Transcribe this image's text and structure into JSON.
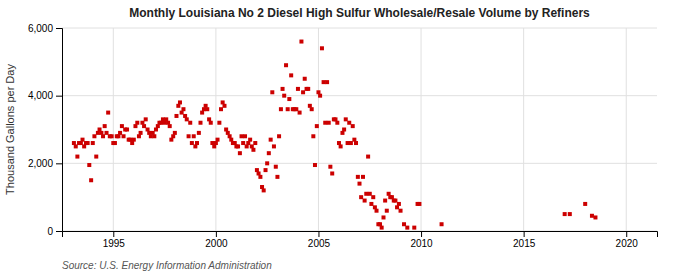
{
  "chart_data": {
    "type": "scatter",
    "title": "Monthly Louisiana No 2 Diesel High Sulfur Wholesale/Resale Volume by Refiners",
    "ylabel": "Thousand Gallons per Day",
    "source": "Source: U.S. Energy Information Administration",
    "color": "#cc0000",
    "marker": "square",
    "grid": true,
    "xlim": [
      1992.5,
      2021.5
    ],
    "xticks": [
      1995,
      2000,
      2005,
      2010,
      2015,
      2020
    ],
    "ylim": [
      0,
      6000
    ],
    "yticks": [
      0,
      {
        "value": 2000,
        "label": "2,000"
      },
      {
        "value": 4000,
        "label": "4,000"
      },
      {
        "value": 6000,
        "label": "6,000"
      }
    ],
    "x": [
      1993.08,
      1993.17,
      1993.25,
      1993.33,
      1993.42,
      1993.5,
      1993.58,
      1993.67,
      1993.75,
      1993.83,
      1993.92,
      1994.0,
      1994.08,
      1994.17,
      1994.25,
      1994.33,
      1994.42,
      1994.5,
      1994.58,
      1994.67,
      1994.75,
      1994.83,
      1994.92,
      1995.0,
      1995.08,
      1995.17,
      1995.25,
      1995.33,
      1995.42,
      1995.5,
      1995.58,
      1995.67,
      1995.75,
      1995.83,
      1995.92,
      1996.0,
      1996.08,
      1996.17,
      1996.25,
      1996.33,
      1996.42,
      1996.5,
      1996.58,
      1996.67,
      1996.75,
      1996.83,
      1996.92,
      1997.0,
      1997.08,
      1997.17,
      1997.25,
      1997.33,
      1997.42,
      1997.5,
      1997.58,
      1997.67,
      1997.75,
      1997.83,
      1997.92,
      1998.0,
      1998.08,
      1998.17,
      1998.25,
      1998.33,
      1998.42,
      1998.5,
      1998.58,
      1998.67,
      1998.75,
      1998.83,
      1998.92,
      1999.0,
      1999.08,
      1999.17,
      1999.25,
      1999.33,
      1999.42,
      1999.5,
      1999.58,
      1999.67,
      1999.75,
      1999.83,
      1999.92,
      2000.0,
      2000.08,
      2000.17,
      2000.25,
      2000.33,
      2000.42,
      2000.5,
      2000.58,
      2000.67,
      2000.75,
      2000.83,
      2000.92,
      2001.0,
      2001.08,
      2001.17,
      2001.25,
      2001.33,
      2001.42,
      2001.5,
      2001.58,
      2001.67,
      2001.75,
      2001.83,
      2001.92,
      2002.0,
      2002.08,
      2002.17,
      2002.25,
      2002.33,
      2002.42,
      2002.5,
      2002.58,
      2002.67,
      2002.75,
      2002.83,
      2002.92,
      2003.0,
      2003.08,
      2003.17,
      2003.25,
      2003.33,
      2003.42,
      2003.5,
      2003.58,
      2003.67,
      2003.75,
      2003.83,
      2003.92,
      2004.0,
      2004.08,
      2004.17,
      2004.25,
      2004.33,
      2004.42,
      2004.5,
      2004.58,
      2004.67,
      2004.75,
      2004.83,
      2004.92,
      2005.0,
      2005.08,
      2005.17,
      2005.25,
      2005.33,
      2005.42,
      2005.5,
      2005.58,
      2005.67,
      2005.75,
      2005.83,
      2005.92,
      2006.0,
      2006.08,
      2006.17,
      2006.25,
      2006.33,
      2006.42,
      2006.5,
      2006.58,
      2006.67,
      2006.75,
      2006.83,
      2006.92,
      2007.0,
      2007.08,
      2007.17,
      2007.25,
      2007.33,
      2007.42,
      2007.5,
      2007.58,
      2007.67,
      2007.75,
      2007.83,
      2007.92,
      2008.0,
      2008.08,
      2008.17,
      2008.25,
      2008.33,
      2008.42,
      2008.5,
      2008.58,
      2008.67,
      2008.75,
      2008.83,
      2008.92,
      2009.0,
      2009.17,
      2009.33,
      2009.67,
      2009.83,
      2009.92,
      2011.0,
      2017.0,
      2017.25,
      2018.0,
      2018.33,
      2018.5
    ],
    "values": [
      2600,
      2500,
      2200,
      2600,
      2600,
      2700,
      2500,
      2600,
      2600,
      1950,
      1500,
      2600,
      2800,
      2200,
      2900,
      3000,
      2900,
      2800,
      3100,
      2900,
      3500,
      2800,
      2800,
      2600,
      2600,
      2800,
      2800,
      2900,
      3100,
      2800,
      3000,
      3000,
      2700,
      2700,
      2600,
      2700,
      3100,
      3200,
      2800,
      2900,
      3200,
      3100,
      3300,
      3000,
      2900,
      2800,
      2900,
      2800,
      3000,
      3100,
      3200,
      3200,
      3300,
      3200,
      3300,
      3200,
      3100,
      2700,
      2800,
      2900,
      3400,
      3700,
      3800,
      3500,
      3600,
      3400,
      3300,
      2800,
      3200,
      2600,
      2800,
      2500,
      2600,
      2900,
      3200,
      3500,
      3600,
      3700,
      3600,
      3300,
      3200,
      2600,
      2500,
      2600,
      2700,
      3200,
      3600,
      3800,
      3700,
      3000,
      2900,
      2800,
      2700,
      2600,
      2600,
      2500,
      2500,
      2300,
      2800,
      2600,
      2800,
      2500,
      2600,
      2700,
      2500,
      2400,
      2600,
      1800,
      1700,
      1600,
      1300,
      1200,
      1800,
      2000,
      2300,
      2700,
      4100,
      2500,
      1900,
      1600,
      2800,
      3600,
      4200,
      4000,
      4900,
      3600,
      3900,
      4600,
      3600,
      3600,
      3600,
      4200,
      3500,
      5600,
      4100,
      4500,
      4200,
      4200,
      3700,
      3600,
      2800,
      1950,
      3100,
      4100,
      4000,
      5400,
      4400,
      3200,
      4400,
      3200,
      1900,
      1700,
      3300,
      3300,
      3200,
      2600,
      2500,
      2900,
      3000,
      3300,
      2600,
      3200,
      2600,
      3100,
      2700,
      2600,
      1600,
      1400,
      1000,
      1600,
      900,
      1100,
      2200,
      1100,
      800,
      1000,
      700,
      600,
      200,
      200,
      100,
      400,
      900,
      600,
      1100,
      1000,
      1000,
      900,
      900,
      700,
      800,
      600,
      200,
      100,
      100,
      800,
      800,
      200,
      500,
      500,
      800,
      450,
      400
    ]
  }
}
